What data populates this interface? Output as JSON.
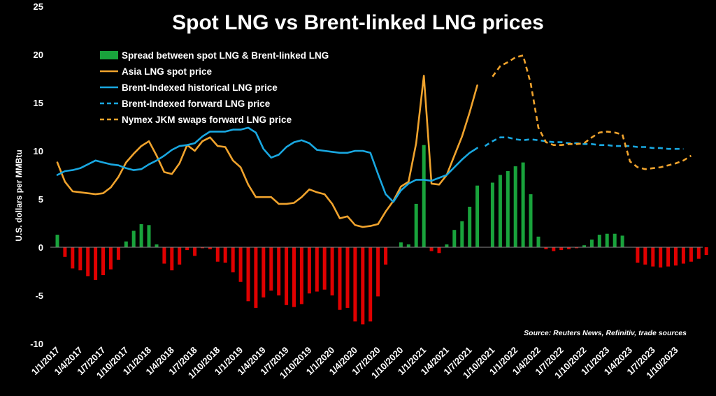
{
  "chart_data": {
    "type": "bar",
    "title": "Spot LNG vs Brent-linked LNG prices",
    "ylabel": "U.S. dollars per MMBtu",
    "ylim": [
      -10,
      25
    ],
    "yticks": [
      -10,
      -5,
      0,
      5,
      10,
      15,
      20,
      25
    ],
    "source": "Source: Reuters News, Refinitiv, trade sources",
    "legend_position": "top-left",
    "x_start": "2017-01",
    "x_tick_labels": [
      "1/1/2017",
      "1/4/2017",
      "1/7/2017",
      "1/10/2017",
      "1/1/2018",
      "1/4/2018",
      "1/7/2018",
      "1/10/2018",
      "1/1/2019",
      "1/4/2019",
      "1/7/2019",
      "1/10/2019",
      "1/1/2020",
      "1/4/2020",
      "1/7/2020",
      "1/10/2020",
      "1/1/2021",
      "1/4/2021",
      "1/7/2021",
      "1/10/2021",
      "1/1/2022",
      "1/4/2022",
      "1/7/2022",
      "1/10/2022",
      "1/1/2023",
      "1/4/2023",
      "1/7/2023",
      "1/10/2023"
    ],
    "series": [
      {
        "name": "Spread between spot LNG & Brent-linked LNG",
        "kind": "bar",
        "color_positive": "#19a33c",
        "color_negative": "#e00000",
        "start_month": 0,
        "values": [
          1.3,
          -1.0,
          -2.2,
          -2.4,
          -3.0,
          -3.4,
          -2.9,
          -2.3,
          -1.3,
          0.6,
          1.7,
          2.4,
          2.3,
          0.3,
          -1.7,
          -2.4,
          -1.8,
          -0.3,
          -0.9,
          -0.1,
          -0.2,
          -1.5,
          -1.6,
          -2.6,
          -3.6,
          -5.6,
          -6.3,
          -5.2,
          -4.5,
          -5.0,
          -6.0,
          -6.2,
          -5.9,
          -4.8,
          -4.6,
          -4.4,
          -5.0,
          -6.5,
          -6.3,
          -7.7,
          -8.0,
          -7.7,
          -5.1,
          -1.8,
          0.0,
          0.5,
          0.3,
          4.5,
          10.6,
          -0.4,
          -0.6,
          0.3,
          1.8,
          2.7,
          4.2,
          6.4,
          null,
          6.7,
          7.5,
          7.9,
          8.4,
          8.8,
          5.5,
          1.1,
          -0.2,
          -0.4,
          -0.3,
          -0.2,
          -0.1,
          0.2,
          0.8,
          1.3,
          1.4,
          1.4,
          1.2,
          0.0,
          -1.6,
          -1.8,
          -2.0,
          -2.1,
          -2.0,
          -1.9,
          -1.7,
          -1.5,
          -1.2,
          -0.8
        ]
      },
      {
        "name": "Asia LNG spot price",
        "kind": "line",
        "color": "#f0a32d",
        "dashed": false,
        "start_month": 0,
        "values": [
          8.8,
          6.8,
          5.8,
          5.7,
          5.6,
          5.5,
          5.6,
          6.2,
          7.3,
          8.8,
          9.7,
          10.5,
          11.0,
          9.5,
          7.8,
          7.6,
          8.7,
          10.6,
          10.0,
          11.0,
          11.4,
          10.5,
          10.4,
          9.0,
          8.3,
          6.5,
          5.2,
          5.2,
          5.2,
          4.5,
          4.5,
          4.6,
          5.2,
          6.0,
          5.7,
          5.5,
          4.5,
          3.0,
          3.2,
          2.3,
          2.1,
          2.2,
          2.4,
          3.7,
          4.8,
          6.3,
          6.8,
          10.8,
          17.8,
          6.6,
          6.5,
          7.5,
          9.5,
          11.5,
          14.0,
          16.8
        ]
      },
      {
        "name": "Brent-Indexed historical LNG price",
        "kind": "line",
        "color": "#19a7e0",
        "dashed": false,
        "start_month": 0,
        "values": [
          7.5,
          7.9,
          8.0,
          8.2,
          8.6,
          9.0,
          8.8,
          8.6,
          8.5,
          8.2,
          8.0,
          8.1,
          8.6,
          9.0,
          9.5,
          10.1,
          10.5,
          10.6,
          10.8,
          11.5,
          12.0,
          12.0,
          12.0,
          12.2,
          12.2,
          12.4,
          11.9,
          10.2,
          9.3,
          9.6,
          10.4,
          10.9,
          11.1,
          10.8,
          10.1,
          10.0,
          9.9,
          9.8,
          9.8,
          10.0,
          10.0,
          9.8,
          7.6,
          5.5,
          4.7,
          5.9,
          6.6,
          7.0,
          7.0,
          6.9,
          7.2,
          7.5,
          8.3,
          9.1,
          9.8,
          10.3
        ]
      },
      {
        "name": "Brent-Indexed forward LNG price",
        "kind": "line",
        "color": "#19a7e0",
        "dashed": true,
        "start_month": 56,
        "values": [
          10.5,
          11.0,
          11.4,
          11.4,
          11.2,
          11.1,
          11.2,
          11.1,
          11.0,
          10.9,
          10.9,
          10.8,
          10.8,
          10.7,
          10.7,
          10.6,
          10.6,
          10.5,
          10.5,
          10.5,
          10.4,
          10.4,
          10.3,
          10.3,
          10.2,
          10.2,
          10.2
        ]
      },
      {
        "name": "Nymex JKM swaps forward LNG price",
        "kind": "line",
        "color": "#f0a32d",
        "dashed": true,
        "start_month": 57,
        "values": [
          17.7,
          18.8,
          19.2,
          19.7,
          19.9,
          17.0,
          12.4,
          10.9,
          10.6,
          10.6,
          10.7,
          10.7,
          10.8,
          11.4,
          11.9,
          12.0,
          11.9,
          11.7,
          8.9,
          8.3,
          8.1,
          8.2,
          8.3,
          8.5,
          8.7,
          9.0,
          9.5
        ]
      }
    ]
  }
}
